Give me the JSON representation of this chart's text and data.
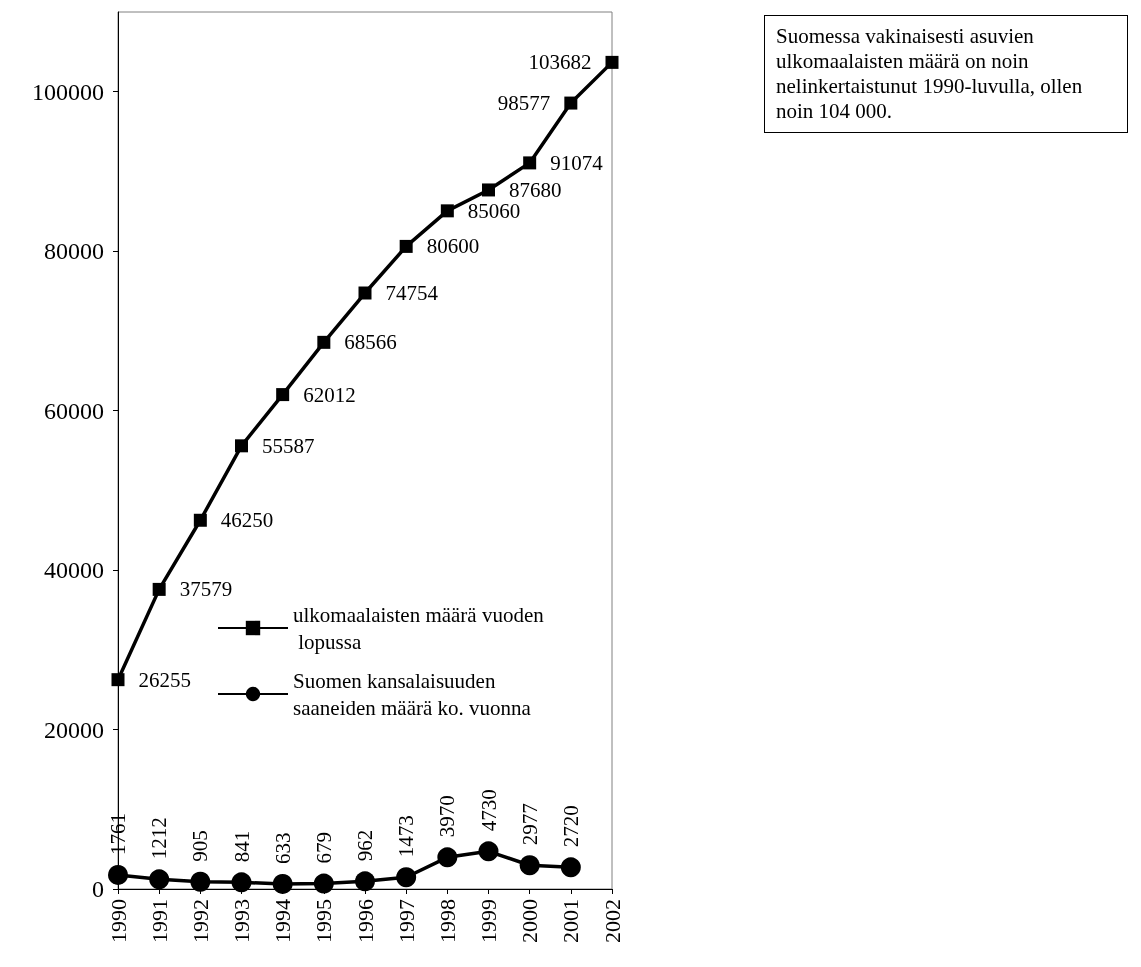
{
  "chart_data": {
    "type": "line",
    "categories": [
      "1990",
      "1991",
      "1992",
      "1993",
      "1994",
      "1995",
      "1996",
      "1997",
      "1998",
      "1999",
      "2000",
      "2001",
      "2002"
    ],
    "series": [
      {
        "name": "ulkomaalaisten määrä vuoden lopussa",
        "color": "#000000",
        "marker": "square",
        "values": [
          26255,
          37579,
          46250,
          55587,
          62012,
          68566,
          74754,
          80600,
          85060,
          87680,
          91074,
          98577,
          103682
        ]
      },
      {
        "name": "Suomen kansalaisuuden saaneiden määrä ko. vuonna",
        "color": "#000000",
        "marker": "circle",
        "values": [
          1761,
          1212,
          905,
          841,
          633,
          679,
          962,
          1473,
          3970,
          4730,
          2977,
          2720,
          null
        ]
      }
    ],
    "ylim": [
      0,
      110000
    ],
    "yticks": [
      0,
      20000,
      40000,
      60000,
      80000,
      100000
    ],
    "grid": false,
    "legend": "right",
    "data_labels": true,
    "line_style": "solid",
    "annotations": [
      "Suomessa vakinaisesti asuvien ulkomaalaisten määrä on noin nelinkertaistunut 1990-luvulla, ollen noin 104 000."
    ]
  }
}
